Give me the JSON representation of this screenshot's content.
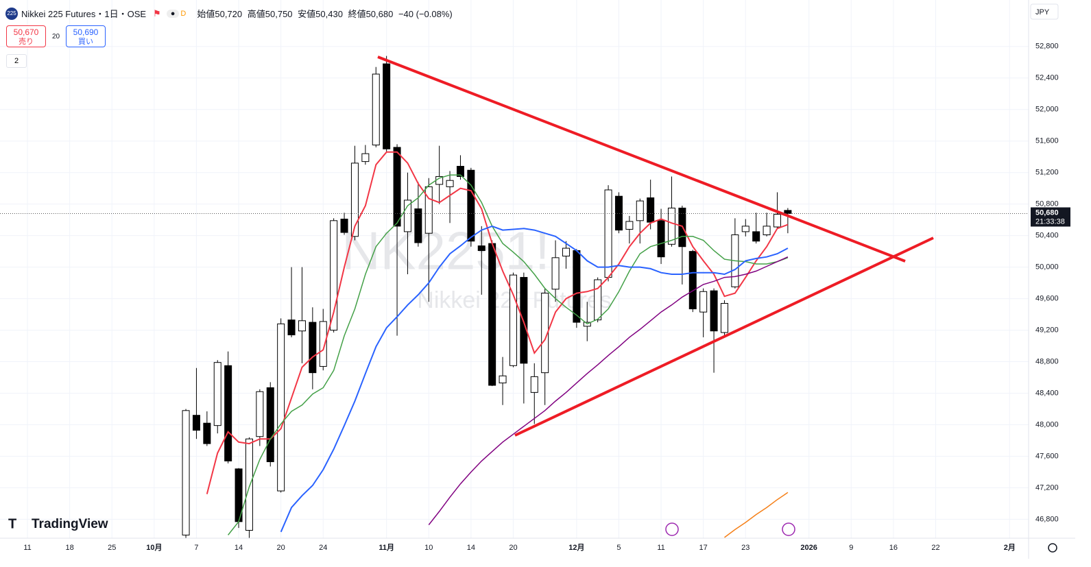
{
  "header": {
    "badge": "225",
    "title": "Nikkei 225 Futures・1日・OSE",
    "flag": "D",
    "ohlc": [
      {
        "label": "始値",
        "value": "50,720"
      },
      {
        "label": "高値",
        "value": "50,750"
      },
      {
        "label": "安値",
        "value": "50,430"
      },
      {
        "label": "終値",
        "value": "50,680"
      }
    ],
    "change": "−40 (−0.08%)"
  },
  "trade": {
    "sell_price": "50,670",
    "sell_label": "売り",
    "spread": "20",
    "buy_price": "50,690",
    "buy_label": "買い"
  },
  "indicators_count": "2",
  "currency": "JPY",
  "watermark": {
    "symbol": "NK2251!",
    "name": "Nikkei 225 Futures"
  },
  "logo": "TradingView",
  "chart_data": {
    "type": "candlestick",
    "x": [
      0,
      1,
      2,
      3,
      4,
      5,
      6,
      7,
      8,
      9,
      10,
      11,
      12,
      13,
      14,
      15,
      16,
      17,
      18,
      19,
      20,
      21,
      22,
      23,
      24,
      25,
      26,
      27,
      28,
      29,
      30,
      31,
      32,
      33,
      34,
      35,
      36,
      37,
      38,
      39,
      40,
      41,
      42,
      43,
      44,
      45,
      46,
      47,
      48,
      49,
      50,
      51,
      52,
      53,
      54,
      55,
      56,
      57
    ],
    "open": [
      46600,
      48120,
      48020,
      47990,
      48750,
      47440,
      46660,
      47850,
      48470,
      47160,
      49330,
      49190,
      49300,
      48740,
      49200,
      50610,
      50390,
      51340,
      51550,
      52580,
      51520,
      50450,
      50740,
      50430,
      51050,
      51020,
      51280,
      51230,
      50270,
      50300,
      48530,
      48750,
      49870,
      48410,
      48660,
      49720,
      50140,
      50210,
      49250,
      49330,
      49870,
      50900,
      50480,
      50590,
      50880,
      50590,
      50290,
      50750,
      50200,
      49430,
      49700,
      49170,
      49750,
      50450,
      50450,
      50410,
      50510,
      50720
    ],
    "high": [
      48200,
      48720,
      48170,
      48820,
      48930,
      47450,
      47840,
      48450,
      48540,
      49350,
      50000,
      50000,
      49490,
      49470,
      50620,
      50690,
      51540,
      51550,
      52540,
      52680,
      51560,
      51200,
      51080,
      51130,
      51540,
      51220,
      51420,
      51260,
      50520,
      50340,
      48860,
      49930,
      49930,
      48780,
      49730,
      50340,
      50330,
      50230,
      49560,
      49870,
      51040,
      50950,
      50650,
      50870,
      51110,
      50740,
      51150,
      50780,
      50220,
      49730,
      49730,
      49580,
      50620,
      50610,
      50690,
      50690,
      50950,
      50750
    ],
    "low": [
      46550,
      47820,
      47730,
      47890,
      47510,
      46690,
      46550,
      47730,
      47470,
      47140,
      49110,
      48780,
      48450,
      48690,
      49170,
      50410,
      50340,
      51300,
      51520,
      51460,
      49130,
      49910,
      50260,
      49560,
      50800,
      50560,
      51110,
      50260,
      49650,
      48490,
      48250,
      48730,
      48270,
      48010,
      48250,
      49560,
      49980,
      49230,
      49060,
      49300,
      49820,
      50430,
      50300,
      50300,
      50480,
      50040,
      50260,
      49780,
      49430,
      49110,
      48660,
      49130,
      49730,
      50390,
      50300,
      50390,
      50490,
      50430
    ],
    "close": [
      48180,
      47930,
      47760,
      48790,
      47540,
      46770,
      47820,
      48420,
      47530,
      49280,
      49140,
      49320,
      48660,
      49310,
      50590,
      50440,
      51320,
      51440,
      52450,
      51500,
      50520,
      50850,
      50310,
      51020,
      51150,
      51100,
      51150,
      50330,
      50210,
      48500,
      48620,
      49900,
      48780,
      48610,
      49670,
      50120,
      50240,
      49300,
      49300,
      49840,
      50980,
      50470,
      50580,
      50840,
      50570,
      50130,
      50750,
      50260,
      49470,
      49690,
      49190,
      49540,
      50410,
      50520,
      50330,
      50520,
      50670,
      50680
    ],
    "up_color": "#ffffff",
    "down_color": "#000000",
    "series": [
      {
        "color": "#f23645",
        "values": [
          null,
          null,
          47120,
          47640,
          47910,
          47780,
          47760,
          47820,
          47820,
          47950,
          48340,
          48730,
          48860,
          48950,
          49430,
          50000,
          50520,
          50780,
          51300,
          51460,
          51460,
          51320,
          51060,
          50870,
          50820,
          50910,
          51000,
          50970,
          50740,
          50300,
          49950,
          49650,
          49300,
          48910,
          49080,
          49430,
          49600,
          49670,
          49690,
          49730,
          49870,
          50040,
          50260,
          50430,
          50560,
          50610,
          50560,
          50520,
          50260,
          50080,
          49910,
          49630,
          49670,
          49870,
          50080,
          50260,
          50490,
          50540
        ]
      },
      {
        "color": "#43a047",
        "values": [
          null,
          null,
          null,
          null,
          46600,
          46770,
          47210,
          47560,
          47820,
          48010,
          48170,
          48250,
          48390,
          48470,
          48690,
          49130,
          49470,
          49910,
          50260,
          50430,
          50560,
          50780,
          50880,
          51040,
          51130,
          51170,
          51170,
          51040,
          50820,
          50520,
          50300,
          50190,
          50070,
          49910,
          49730,
          49600,
          49490,
          49390,
          49280,
          49340,
          49470,
          49690,
          49950,
          50170,
          50260,
          50300,
          50340,
          50390,
          50390,
          50340,
          50210,
          50100,
          50080,
          50070,
          50040,
          50040,
          50070,
          50120
        ]
      },
      {
        "color": "#2962ff",
        "values": [
          null,
          null,
          null,
          null,
          null,
          null,
          null,
          null,
          null,
          46640,
          46950,
          47100,
          47230,
          47430,
          47690,
          47990,
          48300,
          48650,
          48990,
          49230,
          49370,
          49520,
          49650,
          49800,
          50000,
          50170,
          50270,
          50380,
          50470,
          50520,
          50470,
          50480,
          50490,
          50470,
          50430,
          50390,
          50300,
          50210,
          50080,
          50000,
          50000,
          50020,
          50000,
          50000,
          49980,
          49930,
          49910,
          49910,
          49930,
          49930,
          49930,
          49910,
          49970,
          50080,
          50110,
          50130,
          50170,
          50240
        ]
      },
      {
        "color": "#800080",
        "values": [
          null,
          null,
          null,
          null,
          null,
          null,
          null,
          null,
          null,
          null,
          null,
          null,
          null,
          null,
          null,
          null,
          null,
          null,
          null,
          null,
          null,
          null,
          null,
          46730,
          46900,
          47080,
          47250,
          47400,
          47540,
          47660,
          47780,
          47880,
          47980,
          48080,
          48180,
          48300,
          48410,
          48530,
          48650,
          48760,
          48880,
          48990,
          49110,
          49210,
          49320,
          49430,
          49520,
          49620,
          49700,
          49780,
          49820,
          49870,
          49880,
          49910,
          49950,
          50010,
          50070,
          50130
        ]
      },
      {
        "color": "#f57f17",
        "values": [
          null,
          null,
          null,
          null,
          null,
          null,
          null,
          null,
          null,
          null,
          null,
          null,
          null,
          null,
          null,
          null,
          null,
          null,
          null,
          null,
          null,
          null,
          null,
          null,
          null,
          null,
          null,
          null,
          null,
          null,
          null,
          null,
          null,
          null,
          null,
          null,
          null,
          null,
          null,
          null,
          null,
          null,
          null,
          null,
          null,
          null,
          null,
          null,
          null,
          null,
          null,
          46570,
          46670,
          46760,
          46860,
          46950,
          47050,
          47140
        ]
      }
    ],
    "xlim": [
      -17.6,
      79.8
    ],
    "ylim": [
      46560,
      53390
    ],
    "xticks": [
      {
        "value": -15,
        "label": "11"
      },
      {
        "value": -11,
        "label": "18"
      },
      {
        "value": -7,
        "label": "25"
      },
      {
        "value": -3,
        "label": "10月"
      },
      {
        "value": 1,
        "label": "7"
      },
      {
        "value": 5,
        "label": "14"
      },
      {
        "value": 9,
        "label": "20"
      },
      {
        "value": 13,
        "label": "24"
      },
      {
        "value": 19,
        "label": "11月"
      },
      {
        "value": 23,
        "label": "10"
      },
      {
        "value": 27,
        "label": "14"
      },
      {
        "value": 31,
        "label": "20"
      },
      {
        "value": 37,
        "label": "12月"
      },
      {
        "value": 41,
        "label": "5"
      },
      {
        "value": 45,
        "label": "11"
      },
      {
        "value": 49,
        "label": "17"
      },
      {
        "value": 53,
        "label": "23"
      },
      {
        "value": 59,
        "label": "2026"
      },
      {
        "value": 63,
        "label": "9"
      },
      {
        "value": 67,
        "label": "16"
      },
      {
        "value": 71,
        "label": "22"
      },
      {
        "value": 78,
        "label": "2月"
      }
    ],
    "yticks": [
      {
        "value": 46800,
        "label": "46,800"
      },
      {
        "value": 47200,
        "label": "47,200"
      },
      {
        "value": 47600,
        "label": "47,600"
      },
      {
        "value": 48000,
        "label": "48,000"
      },
      {
        "value": 48400,
        "label": "48,400"
      },
      {
        "value": 48800,
        "label": "48,800"
      },
      {
        "value": 49200,
        "label": "49,200"
      },
      {
        "value": 49600,
        "label": "49,600"
      },
      {
        "value": 50000,
        "label": "50,000"
      },
      {
        "value": 50400,
        "label": "50,400"
      },
      {
        "value": 50800,
        "label": "50,800"
      },
      {
        "value": 51200,
        "label": "51,200"
      },
      {
        "value": 51600,
        "label": "51,600"
      },
      {
        "value": 52000,
        "label": "52,000"
      },
      {
        "value": 52400,
        "label": "52,400"
      },
      {
        "value": 52800,
        "label": "52,800"
      }
    ],
    "grid": true,
    "last_price": {
      "value": 50680,
      "label": "50,680"
    },
    "countdown": "21:33:38"
  }
}
